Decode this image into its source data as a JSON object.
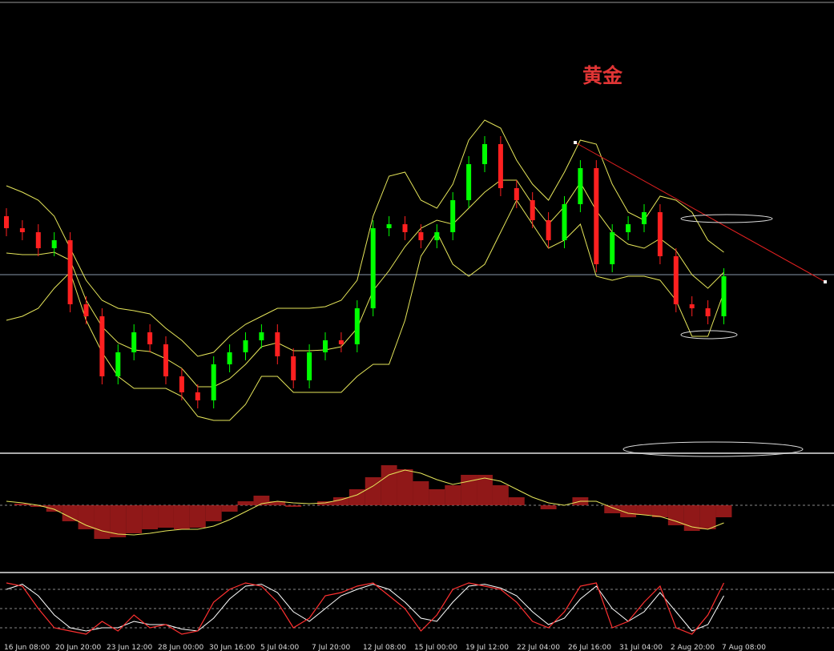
{
  "chart_data": [
    {
      "type": "candlestick",
      "title": "黄金",
      "ylim": [
        35,
        595
      ],
      "open": [
        330,
        315,
        310,
        290,
        300,
        220,
        205,
        130,
        160,
        185,
        170,
        130,
        110,
        100,
        145,
        160,
        175,
        185,
        155,
        125,
        160,
        175,
        170,
        215,
        315,
        320,
        310,
        300,
        310,
        350,
        395,
        420,
        365,
        350,
        325,
        300,
        345,
        390,
        270,
        310,
        320,
        335,
        280,
        220,
        215,
        205
      ],
      "high": [
        340,
        325,
        320,
        310,
        310,
        230,
        215,
        170,
        195,
        195,
        180,
        140,
        120,
        155,
        170,
        185,
        195,
        195,
        165,
        170,
        185,
        185,
        225,
        325,
        330,
        330,
        320,
        320,
        360,
        405,
        430,
        430,
        375,
        360,
        335,
        355,
        400,
        400,
        320,
        330,
        345,
        345,
        290,
        230,
        225,
        265
      ],
      "low": [
        305,
        300,
        280,
        280,
        210,
        195,
        120,
        120,
        150,
        160,
        120,
        100,
        90,
        90,
        135,
        150,
        165,
        145,
        115,
        115,
        150,
        160,
        160,
        205,
        305,
        300,
        290,
        290,
        300,
        340,
        385,
        355,
        340,
        315,
        290,
        290,
        335,
        260,
        260,
        300,
        310,
        270,
        210,
        205,
        195,
        195
      ],
      "close": [
        315,
        310,
        290,
        300,
        220,
        205,
        130,
        160,
        185,
        170,
        130,
        110,
        100,
        145,
        160,
        175,
        185,
        155,
        125,
        160,
        175,
        170,
        215,
        315,
        320,
        310,
        300,
        310,
        350,
        395,
        420,
        365,
        350,
        325,
        300,
        345,
        390,
        270,
        310,
        320,
        335,
        280,
        220,
        215,
        205,
        255
      ],
      "up_color": "#00ff00",
      "down_color": "#ff2020",
      "bands": {
        "color": "#e6e65a",
        "upper": [
          368,
          360,
          350,
          330,
          290,
          250,
          225,
          215,
          212,
          208,
          190,
          175,
          155,
          160,
          180,
          195,
          205,
          215,
          215,
          215,
          217,
          225,
          250,
          330,
          380,
          385,
          350,
          340,
          370,
          425,
          450,
          440,
          400,
          370,
          350,
          385,
          425,
          420,
          370,
          335,
          325,
          355,
          350,
          335,
          300,
          285
        ],
        "middle": [
          284,
          282,
          282,
          285,
          275,
          225,
          192,
          172,
          163,
          161,
          152,
          140,
          117,
          117,
          127,
          145,
          167,
          172,
          162,
          162,
          163,
          167,
          190,
          237,
          262,
          292,
          315,
          325,
          320,
          340,
          360,
          375,
          375,
          345,
          320,
          342,
          372,
          337,
          310,
          295,
          290,
          302,
          287,
          257,
          240,
          260
        ],
        "lower": [
          200,
          205,
          215,
          240,
          260,
          200,
          160,
          130,
          115,
          115,
          115,
          105,
          80,
          75,
          75,
          95,
          130,
          130,
          110,
          110,
          110,
          110,
          130,
          145,
          145,
          200,
          280,
          310,
          270,
          255,
          270,
          310,
          350,
          320,
          290,
          300,
          320,
          255,
          250,
          255,
          255,
          250,
          225,
          180,
          180,
          235
        ]
      }
    },
    {
      "type": "macd",
      "ylim": [
        -82,
        61
      ],
      "levels": [
        0
      ],
      "histogram": [
        0,
        2,
        -2,
        -8,
        -20,
        -30,
        -42,
        -40,
        -35,
        -30,
        -28,
        -30,
        -28,
        -20,
        -8,
        5,
        12,
        5,
        -2,
        0,
        5,
        10,
        20,
        35,
        50,
        45,
        30,
        20,
        25,
        38,
        38,
        25,
        10,
        0,
        -5,
        0,
        10,
        0,
        -10,
        -15,
        -12,
        -15,
        -25,
        -32,
        -30,
        -15
      ],
      "histogram_color": "#c02020",
      "signal": [
        5,
        3,
        0,
        -5,
        -15,
        -25,
        -32,
        -36,
        -37,
        -35,
        -32,
        -30,
        -30,
        -26,
        -18,
        -8,
        2,
        5,
        3,
        2,
        3,
        7,
        13,
        24,
        38,
        44,
        40,
        32,
        26,
        30,
        34,
        30,
        20,
        10,
        3,
        0,
        5,
        5,
        -3,
        -10,
        -12,
        -14,
        -20,
        -27,
        -30,
        -22
      ],
      "signal_color": "#e6e65a"
    },
    {
      "type": "stochastic",
      "ylim": [
        0,
        100
      ],
      "levels": [
        20,
        50,
        80
      ],
      "main": [
        90,
        85,
        50,
        20,
        15,
        10,
        30,
        15,
        40,
        20,
        25,
        10,
        15,
        60,
        80,
        90,
        85,
        60,
        20,
        35,
        70,
        75,
        85,
        90,
        70,
        50,
        15,
        40,
        80,
        90,
        85,
        80,
        60,
        30,
        20,
        45,
        85,
        90,
        20,
        30,
        60,
        85,
        20,
        10,
        40,
        90
      ],
      "main_color": "#ff3030",
      "signal": [
        80,
        88,
        70,
        40,
        20,
        15,
        20,
        20,
        30,
        25,
        25,
        18,
        15,
        35,
        65,
        85,
        88,
        75,
        45,
        30,
        50,
        70,
        80,
        88,
        80,
        60,
        35,
        30,
        60,
        85,
        88,
        82,
        70,
        45,
        25,
        35,
        65,
        85,
        50,
        30,
        45,
        75,
        45,
        15,
        25,
        70
      ],
      "signal_color": "#ffffff",
      "time_labels": [
        "16 Jun 08:00",
        "20 Jun 20:00",
        "23 Jun 12:00",
        "28 Jun 00:00",
        "30 Jun 16:00",
        "5 Jul 04:00",
        "7 Jul 20:00",
        "12 Jul 08:00",
        "15 Jul 00:00",
        "19 Jul 12:00",
        "22 Jul 04:00",
        "26 Jul 16:00",
        "31 Jul 04:00",
        "2 Aug 20:00",
        "7 Aug 08:00"
      ]
    }
  ]
}
